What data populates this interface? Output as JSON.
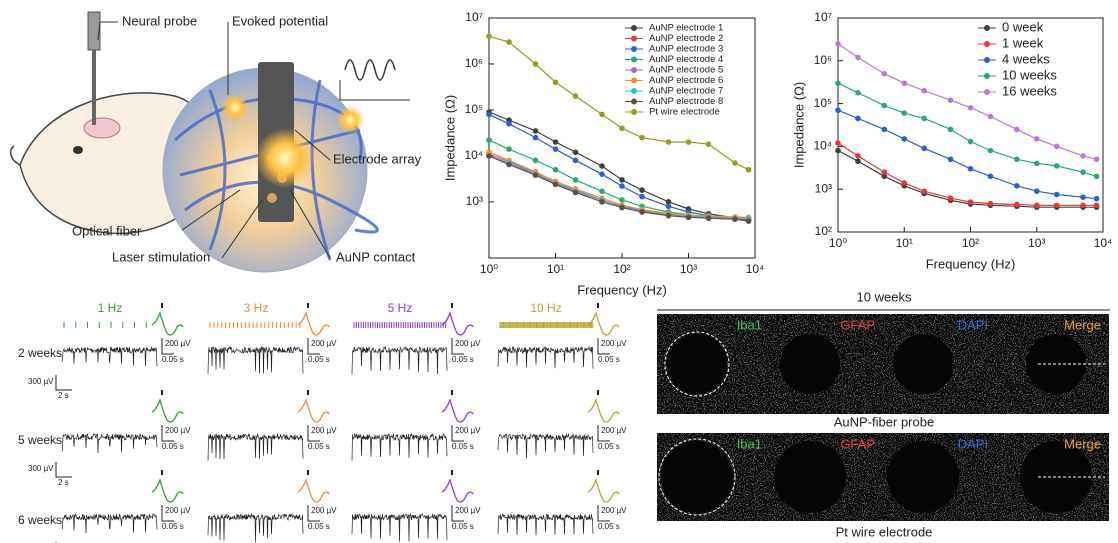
{
  "illustration": {
    "labels": [
      "Neural probe",
      "Evoked potential",
      "Electrode array",
      "Optical fiber",
      "Laser stimulation",
      "AuNP contact"
    ]
  },
  "chart_data": [
    {
      "type": "line",
      "x_label": "Frequency (Hz)",
      "y_label": "Impedance (Ω)",
      "log_x": true,
      "log_y": true,
      "markers": true,
      "legend": "upper right",
      "x": [
        1,
        2,
        5,
        10,
        20,
        50,
        100,
        200,
        500,
        1000,
        2000,
        5000,
        8000
      ],
      "xlim": [
        1,
        10000
      ],
      "xticks": [
        {
          "value": 1,
          "label": "10⁰"
        },
        {
          "value": 10,
          "label": "10¹"
        },
        {
          "value": 100,
          "label": "10²"
        },
        {
          "value": 1000,
          "label": "10³"
        },
        {
          "value": 10000,
          "label": "10⁴"
        }
      ],
      "ylim": [
        60,
        10000000
      ],
      "yticks": [
        {
          "value": 1000,
          "label": "10³"
        },
        {
          "value": 10000,
          "label": "10⁴"
        },
        {
          "value": 100000,
          "label": "10⁵"
        },
        {
          "value": 1000000,
          "label": "10⁶"
        },
        {
          "value": 10000000,
          "label": "10⁷"
        }
      ],
      "series": [
        {
          "name": "AuNP electrode 1",
          "color": "#404040",
          "values": [
            90000,
            60000,
            35000,
            20000,
            12000,
            6000,
            3000,
            1800,
            1000,
            700,
            550,
            450,
            400
          ]
        },
        {
          "name": "AuNP electrode 2",
          "color": "#e03a3a",
          "values": [
            10000,
            7000,
            4000,
            2500,
            1700,
            1100,
            800,
            650,
            530,
            480,
            450,
            420,
            400
          ]
        },
        {
          "name": "AuNP electrode 3",
          "color": "#2f5fc8",
          "values": [
            80000,
            50000,
            25000,
            14000,
            8000,
            4000,
            2200,
            1300,
            800,
            600,
            500,
            450,
            420
          ]
        },
        {
          "name": "AuNP electrode 4",
          "color": "#2aa878",
          "values": [
            22000,
            14000,
            8000,
            5000,
            3000,
            1700,
            1100,
            800,
            600,
            520,
            480,
            450,
            430
          ]
        },
        {
          "name": "AuNP electrode 5",
          "color": "#a46ad8",
          "values": [
            11000,
            7500,
            4200,
            2600,
            1800,
            1100,
            800,
            650,
            540,
            490,
            470,
            450,
            440
          ]
        },
        {
          "name": "AuNP electrode 6",
          "color": "#f0922e",
          "values": [
            12000,
            8000,
            4500,
            2800,
            1900,
            1200,
            850,
            680,
            560,
            510,
            490,
            470,
            460
          ]
        },
        {
          "name": "AuNP electrode 7",
          "color": "#38b8d8",
          "values": [
            10000,
            7000,
            4000,
            2500,
            1700,
            1100,
            780,
            620,
            520,
            480,
            460,
            440,
            430
          ]
        },
        {
          "name": "AuNP electrode 8",
          "color": "#6e4a3a",
          "values": [
            10000,
            6500,
            3800,
            2400,
            1600,
            1000,
            750,
            600,
            500,
            460,
            440,
            420,
            380
          ]
        },
        {
          "name": "Pt wire electrode",
          "color": "#9a9a20",
          "values": [
            4000000,
            3000000,
            1000000,
            400000,
            200000,
            80000,
            40000,
            25000,
            20000,
            20000,
            18000,
            7000,
            5000
          ]
        }
      ]
    },
    {
      "type": "line",
      "x_label": "Frequency (Hz)",
      "y_label": "Impedance (Ω)",
      "log_x": true,
      "log_y": true,
      "markers": true,
      "legend": "upper left",
      "x": [
        1,
        2,
        5,
        10,
        20,
        50,
        100,
        200,
        500,
        1000,
        2000,
        5000,
        8000
      ],
      "xlim": [
        1,
        10000
      ],
      "xticks": [
        {
          "value": 1,
          "label": "10⁰"
        },
        {
          "value": 10,
          "label": "10¹"
        },
        {
          "value": 100,
          "label": "10²"
        },
        {
          "value": 1000,
          "label": "10³"
        },
        {
          "value": 10000,
          "label": "10⁴"
        }
      ],
      "ylim": [
        100,
        10000000
      ],
      "yticks": [
        {
          "value": 100,
          "label": "10²"
        },
        {
          "value": 1000,
          "label": "10³"
        },
        {
          "value": 10000,
          "label": "10⁴"
        },
        {
          "value": 100000,
          "label": "10⁵"
        },
        {
          "value": 1000000,
          "label": "10⁶"
        },
        {
          "value": 10000000,
          "label": "10⁷"
        }
      ],
      "series": [
        {
          "name": "0 week",
          "color": "#404040",
          "values": [
            8000,
            4500,
            2000,
            1200,
            800,
            550,
            450,
            420,
            400,
            380,
            380,
            380,
            380
          ]
        },
        {
          "name": "1 week",
          "color": "#e03a3a",
          "values": [
            12000,
            6000,
            2500,
            1400,
            900,
            620,
            500,
            460,
            440,
            420,
            420,
            420,
            420
          ]
        },
        {
          "name": "4 weeks",
          "color": "#2f5fc8",
          "values": [
            70000,
            45000,
            25000,
            15000,
            9000,
            5000,
            3000,
            2000,
            1200,
            900,
            750,
            650,
            600
          ]
        },
        {
          "name": "10 weeks",
          "color": "#2aa878",
          "values": [
            300000,
            180000,
            90000,
            60000,
            45000,
            25000,
            13000,
            8000,
            5000,
            4000,
            3500,
            2500,
            2000
          ]
        },
        {
          "name": "16 weeks",
          "color": "#b77ad8",
          "values": [
            2500000,
            1200000,
            500000,
            300000,
            200000,
            120000,
            80000,
            50000,
            25000,
            15000,
            10000,
            6000,
            5000
          ]
        }
      ]
    }
  ],
  "recordings": {
    "frequencies": [
      "1 Hz",
      "3 Hz",
      "5 Hz",
      "10 Hz"
    ],
    "timepoints": [
      "2 weeks",
      "5 weeks",
      "6 weeks"
    ],
    "trace_amplitude": "300 µV",
    "trace_time": "2 s",
    "spike_amplitude": "200 µV",
    "spike_time": "0.05 s"
  },
  "histology": {
    "title": "10 weeks",
    "channels": [
      "Iba1",
      "GFAP",
      "DAPI",
      "Merge"
    ],
    "rows": [
      "AuNP-fiber probe",
      "Pt wire electrode"
    ]
  }
}
